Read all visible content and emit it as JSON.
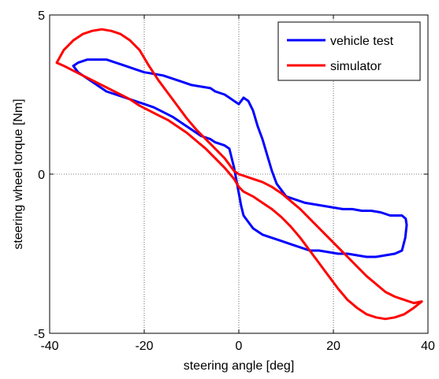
{
  "chart_data": {
    "type": "line",
    "title": "",
    "xlabel": "steering angle [deg]",
    "ylabel": "steering wheel torque [Nm]",
    "xlim": [
      -40,
      40
    ],
    "ylim": [
      -5,
      5
    ],
    "xticks": [
      -40,
      -20,
      0,
      20,
      40
    ],
    "yticks": [
      -5,
      0,
      5
    ],
    "xtick_labels": [
      "-40",
      "-20",
      "0",
      "20",
      "40"
    ],
    "ytick_labels": [
      "-5",
      "0",
      "5"
    ],
    "grid": true,
    "grid_style": "dotted",
    "legend": {
      "position": "top-right"
    },
    "series": [
      {
        "name": "vehicle test",
        "color": "#0000ff",
        "x": [
          -35,
          -34,
          -32,
          -30,
          -28,
          -26,
          -24,
          -22,
          -20,
          -18,
          -16,
          -14,
          -12,
          -10,
          -8,
          -6,
          -5,
          -4,
          -3,
          -2,
          -1.5,
          -1,
          -0.5,
          0,
          0.5,
          1,
          2,
          3,
          5,
          7,
          9,
          11,
          13,
          15,
          17,
          19,
          21,
          23,
          25,
          27,
          29,
          31,
          33,
          34.5,
          35.2,
          35.5,
          35.3,
          34.5,
          32,
          30,
          28,
          26,
          24,
          22,
          20,
          18,
          16,
          14,
          12,
          10,
          9,
          8,
          7,
          6,
          5,
          4,
          3,
          2,
          1,
          0.5,
          0,
          -0.5,
          -1,
          -2,
          -3,
          -4,
          -5,
          -6,
          -8,
          -10,
          -12,
          -14,
          -16,
          -18,
          -20,
          -22,
          -24,
          -26,
          -28,
          -30,
          -32,
          -34,
          -35
        ],
        "y": [
          3.4,
          3.2,
          3.0,
          2.8,
          2.6,
          2.5,
          2.4,
          2.3,
          2.2,
          2.1,
          1.95,
          1.8,
          1.6,
          1.4,
          1.2,
          1.1,
          1.0,
          0.95,
          0.9,
          0.8,
          0.5,
          0.2,
          -0.2,
          -0.6,
          -1.0,
          -1.3,
          -1.5,
          -1.7,
          -1.9,
          -2.0,
          -2.1,
          -2.2,
          -2.3,
          -2.4,
          -2.4,
          -2.45,
          -2.5,
          -2.5,
          -2.55,
          -2.6,
          -2.6,
          -2.55,
          -2.5,
          -2.4,
          -2.0,
          -1.6,
          -1.4,
          -1.3,
          -1.3,
          -1.2,
          -1.15,
          -1.15,
          -1.1,
          -1.1,
          -1.05,
          -1.0,
          -0.95,
          -0.9,
          -0.8,
          -0.7,
          -0.5,
          -0.3,
          0.1,
          0.6,
          1.1,
          1.5,
          2.0,
          2.3,
          2.4,
          2.3,
          2.2,
          2.25,
          2.3,
          2.4,
          2.5,
          2.55,
          2.6,
          2.7,
          2.75,
          2.8,
          2.9,
          3.0,
          3.1,
          3.15,
          3.2,
          3.3,
          3.4,
          3.5,
          3.6,
          3.6,
          3.6,
          3.5,
          3.4
        ]
      },
      {
        "name": "simulator",
        "color": "#ff0000",
        "x": [
          -38.5,
          -37,
          -35,
          -33,
          -31,
          -29,
          -27,
          -25,
          -23,
          -21,
          -19,
          -17,
          -15,
          -13,
          -11,
          -9,
          -7,
          -5,
          -3,
          -1,
          0,
          1,
          3,
          5,
          7,
          9,
          11,
          13,
          15,
          17,
          19,
          21,
          23,
          25,
          27,
          29,
          31,
          33,
          35,
          37,
          38.7,
          37,
          35,
          33,
          31,
          29,
          27,
          25,
          23,
          21,
          19,
          17,
          15,
          13,
          11,
          9,
          7,
          5,
          3,
          1,
          0,
          -1,
          -3,
          -5,
          -7,
          -9,
          -11,
          -13,
          -15,
          -17,
          -19,
          -21,
          -23,
          -25,
          -27,
          -29,
          -31,
          -33,
          -35,
          -37,
          -38.5
        ],
        "y": [
          3.5,
          3.9,
          4.2,
          4.4,
          4.5,
          4.55,
          4.5,
          4.4,
          4.2,
          3.9,
          3.4,
          2.95,
          2.55,
          2.15,
          1.75,
          1.4,
          1.1,
          0.8,
          0.5,
          0.1,
          0.0,
          -0.05,
          -0.15,
          -0.25,
          -0.4,
          -0.6,
          -0.85,
          -1.1,
          -1.4,
          -1.7,
          -2.0,
          -2.3,
          -2.6,
          -2.9,
          -3.2,
          -3.45,
          -3.7,
          -3.85,
          -3.95,
          -4.05,
          -4.0,
          -4.2,
          -4.4,
          -4.5,
          -4.55,
          -4.5,
          -4.4,
          -4.2,
          -3.95,
          -3.6,
          -3.2,
          -2.8,
          -2.4,
          -2.0,
          -1.65,
          -1.35,
          -1.1,
          -0.9,
          -0.7,
          -0.55,
          -0.4,
          -0.15,
          0.2,
          0.5,
          0.8,
          1.05,
          1.3,
          1.5,
          1.7,
          1.85,
          2.0,
          2.15,
          2.35,
          2.5,
          2.65,
          2.8,
          2.95,
          3.1,
          3.25,
          3.4,
          3.5
        ]
      }
    ]
  }
}
